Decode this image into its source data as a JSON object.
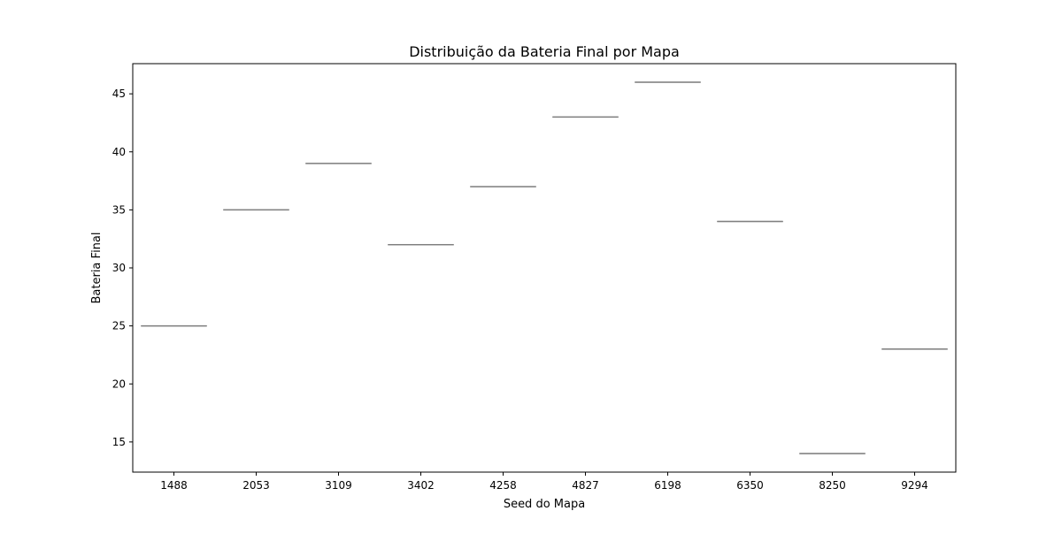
{
  "chart_data": {
    "type": "box",
    "title": "Distribuição da Bateria Final por Mapa",
    "xlabel": "Seed do Mapa",
    "ylabel": "Bateria Final",
    "categories": [
      "1488",
      "2053",
      "3109",
      "3402",
      "4258",
      "4827",
      "6198",
      "6350",
      "8250",
      "9294"
    ],
    "values": [
      25,
      35,
      39,
      32,
      37,
      43,
      46,
      34,
      14,
      23
    ],
    "ylim": [
      12.4,
      47.6
    ],
    "yticks": [
      15,
      20,
      25,
      30,
      35,
      40,
      45
    ],
    "grid": false,
    "legend": "none",
    "colors": {
      "box_line": "#808080",
      "axis": "#000000",
      "background": "#ffffff"
    }
  }
}
